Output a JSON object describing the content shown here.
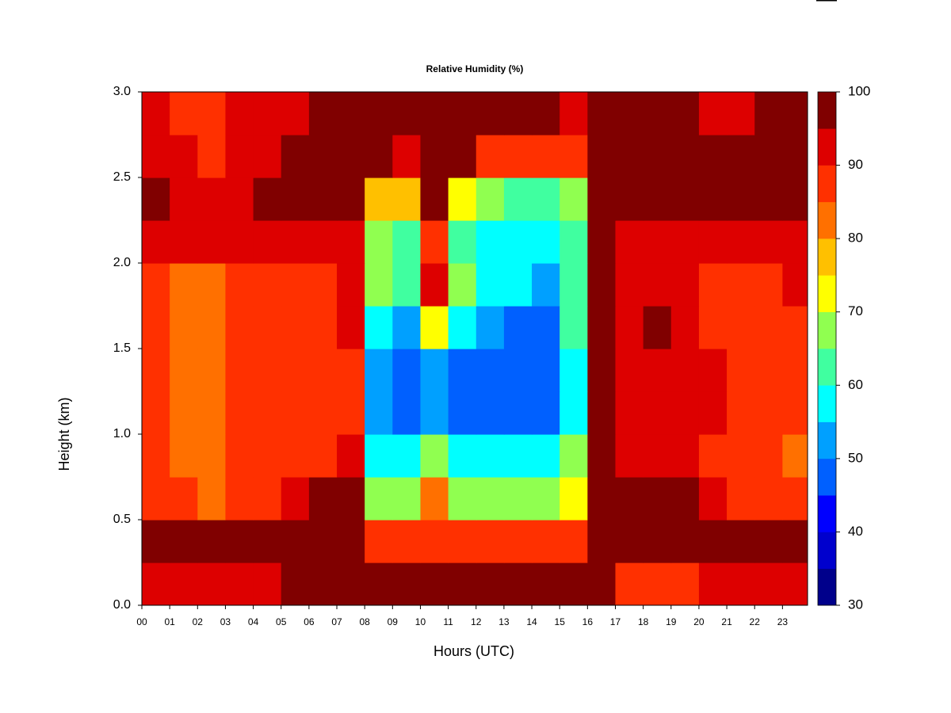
{
  "chart_data": {
    "type": "heatmap",
    "title": "Relative Humidity (%)",
    "x_label": "Hours (UTC)",
    "y_label": "Height (km)",
    "xlim": [
      0,
      23.9
    ],
    "ylim": [
      0,
      3
    ],
    "xticks": [
      {
        "value": 0,
        "label": "00"
      },
      {
        "value": 1,
        "label": "01"
      },
      {
        "value": 2,
        "label": "02"
      },
      {
        "value": 3,
        "label": "03"
      },
      {
        "value": 4,
        "label": "04"
      },
      {
        "value": 5,
        "label": "05"
      },
      {
        "value": 6,
        "label": "06"
      },
      {
        "value": 7,
        "label": "07"
      },
      {
        "value": 8,
        "label": "08"
      },
      {
        "value": 9,
        "label": "09"
      },
      {
        "value": 10,
        "label": "10"
      },
      {
        "value": 11,
        "label": "11"
      },
      {
        "value": 12,
        "label": "12"
      },
      {
        "value": 13,
        "label": "13"
      },
      {
        "value": 14,
        "label": "14"
      },
      {
        "value": 15,
        "label": "15"
      },
      {
        "value": 16,
        "label": "16"
      },
      {
        "value": 17,
        "label": "17"
      },
      {
        "value": 18,
        "label": "18"
      },
      {
        "value": 19,
        "label": "19"
      },
      {
        "value": 20,
        "label": "20"
      },
      {
        "value": 21,
        "label": "21"
      },
      {
        "value": 22,
        "label": "22"
      },
      {
        "value": 23,
        "label": "23"
      }
    ],
    "yticks": [
      {
        "value": 0,
        "label": "0.0"
      },
      0.5,
      {
        "value": 1,
        "label": "1.0"
      },
      1.5,
      {
        "value": 2,
        "label": "2.0"
      },
      2.5,
      {
        "value": 3,
        "label": "3.0"
      }
    ],
    "x": [
      0,
      1,
      2,
      3,
      4,
      5,
      6,
      7,
      8,
      9,
      10,
      11,
      12,
      13,
      14,
      15,
      16,
      17,
      18,
      19,
      20,
      21,
      22,
      23
    ],
    "y": [
      0,
      0.25,
      0.5,
      0.75,
      1,
      1.25,
      1.5,
      1.75,
      2,
      2.25,
      2.5,
      2.75
    ],
    "z": [
      [
        92,
        92,
        93,
        94,
        95,
        96,
        97,
        97,
        98,
        98,
        98,
        98,
        98,
        98,
        98,
        98,
        96,
        90,
        86,
        88,
        93,
        94,
        94,
        94
      ],
      [
        96,
        96,
        96,
        97,
        97,
        98,
        98,
        98,
        88,
        88,
        90,
        88,
        88,
        88,
        88,
        90,
        98,
        98,
        98,
        98,
        97,
        97,
        97,
        97
      ],
      [
        88,
        86,
        84,
        88,
        90,
        92,
        96,
        97,
        68,
        66,
        82,
        70,
        66,
        66,
        66,
        72,
        97,
        97,
        97,
        97,
        92,
        90,
        88,
        86
      ],
      [
        88,
        84,
        84,
        88,
        88,
        88,
        90,
        92,
        60,
        58,
        68,
        60,
        58,
        56,
        56,
        66,
        97,
        95,
        95,
        95,
        90,
        88,
        86,
        84
      ],
      [
        88,
        84,
        84,
        86,
        86,
        88,
        88,
        90,
        52,
        50,
        54,
        50,
        46,
        46,
        48,
        60,
        96,
        95,
        95,
        95,
        92,
        90,
        86,
        86
      ],
      [
        86,
        83,
        83,
        86,
        86,
        88,
        88,
        90,
        54,
        50,
        52,
        50,
        46,
        46,
        48,
        60,
        96,
        95,
        95,
        95,
        92,
        90,
        88,
        88
      ],
      [
        86,
        83,
        84,
        86,
        88,
        88,
        88,
        92,
        58,
        54,
        72,
        56,
        52,
        50,
        50,
        62,
        97,
        95,
        96,
        95,
        90,
        88,
        88,
        90
      ],
      [
        88,
        84,
        84,
        88,
        88,
        90,
        90,
        92,
        66,
        62,
        95,
        66,
        58,
        56,
        54,
        64,
        96,
        92,
        92,
        92,
        88,
        86,
        88,
        92
      ],
      [
        94,
        92,
        92,
        94,
        94,
        95,
        95,
        95,
        68,
        62,
        88,
        64,
        60,
        58,
        56,
        64,
        97,
        95,
        95,
        95,
        94,
        92,
        94,
        95
      ],
      [
        96,
        94,
        94,
        95,
        96,
        96,
        96,
        96,
        80,
        76,
        96,
        72,
        66,
        64,
        62,
        66,
        98,
        97,
        97,
        97,
        96,
        96,
        97,
        97
      ],
      [
        94,
        92,
        90,
        94,
        95,
        96,
        96,
        96,
        97,
        92,
        98,
        96,
        90,
        88,
        86,
        86,
        98,
        98,
        98,
        97,
        96,
        96,
        97,
        97
      ],
      [
        93,
        90,
        88,
        92,
        94,
        95,
        96,
        96,
        97,
        97,
        98,
        98,
        98,
        97,
        96,
        95,
        98,
        97,
        97,
        96,
        95,
        95,
        97,
        97
      ]
    ],
    "levels": [
      30,
      35,
      40,
      45,
      50,
      55,
      60,
      65,
      70,
      75,
      80,
      85,
      90,
      95,
      100
    ],
    "colors": [
      "#00008b",
      "#0000cd",
      "#0000ff",
      "#0060ff",
      "#00a0ff",
      "#00ffff",
      "#40ffa0",
      "#90ff50",
      "#ffff00",
      "#ffc000",
      "#ff7000",
      "#ff3000",
      "#dd0000",
      "#800000"
    ],
    "colorbar_ticks": [
      30,
      40,
      50,
      60,
      70,
      80,
      90,
      100
    ]
  }
}
